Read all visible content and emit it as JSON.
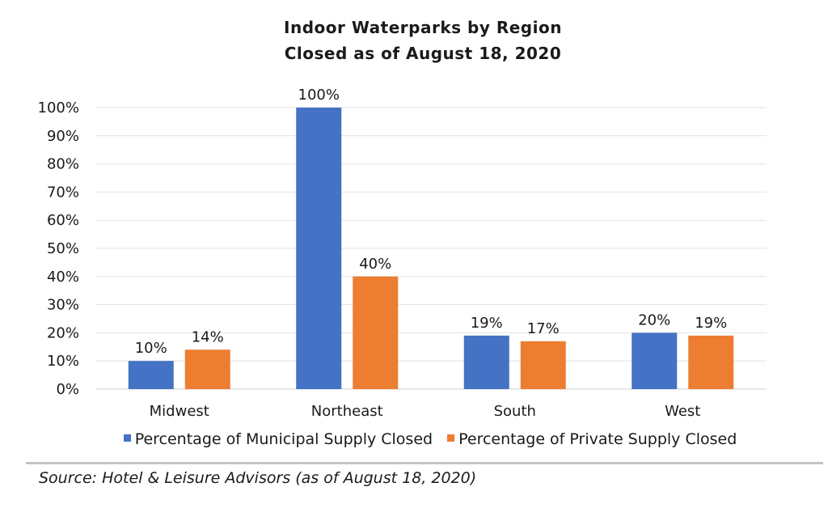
{
  "chart_data": {
    "type": "bar",
    "title": "Indoor Waterparks by Region",
    "subtitle": "Closed as of August 18, 2020",
    "categories": [
      "Midwest",
      "Northeast",
      "South",
      "West"
    ],
    "series": [
      {
        "name": "Percentage of Municipal Supply Closed",
        "values": [
          10,
          100,
          19,
          20
        ],
        "labels": [
          "10%",
          "100%",
          "19%",
          "20%"
        ],
        "color": "#4472C4"
      },
      {
        "name": "Percentage of Private Supply Closed",
        "values": [
          14,
          40,
          17,
          19
        ],
        "labels": [
          "14%",
          "40%",
          "17%",
          "19%"
        ],
        "color": "#ED7D31"
      }
    ],
    "ylim": [
      0,
      100
    ],
    "yticks": [
      "0%",
      "10%",
      "20%",
      "30%",
      "40%",
      "50%",
      "60%",
      "70%",
      "80%",
      "90%",
      "100%"
    ],
    "grid": true,
    "legend": "bottom"
  },
  "source": "Source: Hotel & Leisure Advisors (as of August 18, 2020)"
}
